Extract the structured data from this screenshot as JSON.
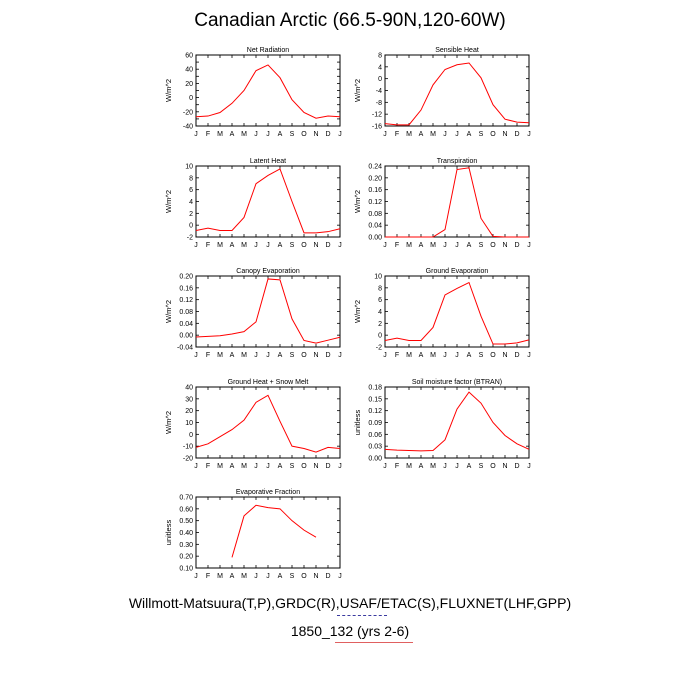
{
  "title": "Canadian Arctic (66.5-90N,120-60W)",
  "footer": {
    "sources": "Willmott-Matsuura(T,P),GRDC(R),USAF/ETAC(S),FLUXNET(LHF,GPP)",
    "case": "1850_132 (yrs 2-6)"
  },
  "colors": {
    "series": "#ff0000",
    "axis": "#000000"
  },
  "months": [
    "J",
    "F",
    "M",
    "A",
    "M",
    "J",
    "J",
    "A",
    "S",
    "O",
    "N",
    "D",
    "J"
  ],
  "chart_data": [
    {
      "type": "line",
      "title": "Net Radiation",
      "ylabel": "W/m^2",
      "ylim": [
        -40,
        60
      ],
      "yticks": [
        -40,
        -30,
        -20,
        -10,
        0,
        10,
        20,
        30,
        40,
        50,
        60
      ],
      "ytick_labels": [
        "-40",
        "-20",
        "0",
        "20",
        "40",
        "60"
      ],
      "x": [
        1,
        2,
        3,
        4,
        5,
        6,
        7,
        8,
        9,
        10,
        11,
        12,
        13
      ],
      "values": [
        -27,
        -26,
        -21,
        -8,
        10,
        38,
        46,
        28,
        -3,
        -21,
        -29,
        -26,
        -27
      ]
    },
    {
      "type": "line",
      "title": "Sensible Heat",
      "ylabel": "W/m^2",
      "ylim": [
        -16,
        8
      ],
      "yticks": [
        -16,
        -12,
        -8,
        -4,
        0,
        4,
        8
      ],
      "ytick_labels": [
        "-16",
        "-12",
        "-8",
        "-4",
        "0",
        "4",
        "8"
      ],
      "x": [
        1,
        2,
        3,
        4,
        5,
        6,
        7,
        8,
        9,
        10,
        11,
        12,
        13
      ],
      "values": [
        -15.2,
        -15.6,
        -15.6,
        -10.6,
        -2.1,
        3.1,
        4.7,
        5.3,
        0.3,
        -8.8,
        -13.7,
        -14.7,
        -14.9
      ]
    },
    {
      "type": "line",
      "title": "Latent Heat",
      "ylabel": "W/m^2",
      "ylim": [
        -2,
        10
      ],
      "yticks": [
        -2,
        0,
        2,
        4,
        6,
        8,
        10
      ],
      "ytick_labels": [
        "-2",
        "0",
        "2",
        "4",
        "6",
        "8",
        "10"
      ],
      "x": [
        1,
        2,
        3,
        4,
        5,
        6,
        7,
        8,
        9,
        10,
        11,
        12,
        13
      ],
      "values": [
        -0.9,
        -0.5,
        -0.9,
        -0.9,
        1.3,
        7.0,
        8.4,
        9.5,
        4.0,
        -1.3,
        -1.3,
        -1.1,
        -0.6
      ]
    },
    {
      "type": "line",
      "title": "Transpiration",
      "ylabel": "W/m^2",
      "ylim": [
        0,
        0.24
      ],
      "yticks": [
        0,
        0.04,
        0.08,
        0.12,
        0.16,
        0.2,
        0.24
      ],
      "ytick_labels": [
        "0.00",
        "0.04",
        "0.08",
        "0.12",
        "0.16",
        "0.20",
        "0.24"
      ],
      "x": [
        1,
        2,
        3,
        4,
        5,
        6,
        7,
        8,
        9,
        10,
        11,
        12,
        13
      ],
      "values": [
        0,
        0,
        0,
        0,
        0,
        0.025,
        0.228,
        0.234,
        0.063,
        0.002,
        0,
        0,
        0
      ]
    },
    {
      "type": "line",
      "title": "Canopy Evaporation",
      "ylabel": "W/m^2",
      "ylim": [
        -0.04,
        0.2
      ],
      "yticks": [
        -0.04,
        0,
        0.04,
        0.08,
        0.12,
        0.16,
        0.2
      ],
      "ytick_labels": [
        "-0.04",
        "0.00",
        "0.04",
        "0.08",
        "0.12",
        "0.16",
        "0.20"
      ],
      "x": [
        1,
        2,
        3,
        4,
        5,
        6,
        7,
        8,
        9,
        10,
        11,
        12,
        13
      ],
      "values": [
        -0.006,
        -0.004,
        -0.002,
        0.004,
        0.012,
        0.045,
        0.19,
        0.187,
        0.055,
        -0.018,
        -0.027,
        -0.017,
        -0.007
      ]
    },
    {
      "type": "line",
      "title": "Ground Evaporation",
      "ylabel": "W/m^2",
      "ylim": [
        -2,
        10
      ],
      "yticks": [
        -2,
        0,
        2,
        4,
        6,
        8,
        10
      ],
      "ytick_labels": [
        "-2",
        "0",
        "2",
        "4",
        "6",
        "8",
        "10"
      ],
      "x": [
        1,
        2,
        3,
        4,
        5,
        6,
        7,
        8,
        9,
        10,
        11,
        12,
        13
      ],
      "values": [
        -0.9,
        -0.5,
        -0.9,
        -0.9,
        1.3,
        6.8,
        7.9,
        8.9,
        3.2,
        -1.5,
        -1.5,
        -1.3,
        -0.8
      ]
    },
    {
      "type": "line",
      "title": "Ground Heat + Snow Melt",
      "ylabel": "W/m^2",
      "ylim": [
        -20,
        40
      ],
      "yticks": [
        -20,
        -10,
        0,
        10,
        20,
        30,
        40
      ],
      "ytick_labels": [
        "-20",
        "-10",
        "0",
        "10",
        "20",
        "30",
        "40"
      ],
      "x": [
        1,
        2,
        3,
        4,
        5,
        6,
        7,
        8,
        9,
        10,
        11,
        12,
        13
      ],
      "values": [
        -11,
        -8,
        -2,
        4,
        12,
        27,
        33,
        11,
        -10,
        -12,
        -15,
        -11,
        -12
      ]
    },
    {
      "type": "line",
      "title": "Soil moisture factor (BTRAN)",
      "ylabel": "unitless",
      "ylim": [
        0,
        0.18
      ],
      "yticks": [
        0,
        0.03,
        0.06,
        0.09,
        0.12,
        0.15,
        0.18
      ],
      "ytick_labels": [
        "0.00",
        "0.03",
        "0.06",
        "0.09",
        "0.12",
        "0.15",
        "0.18"
      ],
      "x": [
        1,
        2,
        3,
        4,
        5,
        6,
        7,
        8,
        9,
        10,
        11,
        12,
        13
      ],
      "values": [
        0.022,
        0.02,
        0.019,
        0.018,
        0.019,
        0.046,
        0.124,
        0.167,
        0.139,
        0.09,
        0.057,
        0.036,
        0.022
      ]
    },
    {
      "type": "line",
      "title": "Evaporative Fraction",
      "ylabel": "unitless",
      "ylim": [
        0.1,
        0.7
      ],
      "yticks": [
        0.1,
        0.2,
        0.3,
        0.4,
        0.5,
        0.6,
        0.7
      ],
      "ytick_labels": [
        "0.10",
        "0.20",
        "0.30",
        "0.40",
        "0.50",
        "0.60",
        "0.70"
      ],
      "x": [
        4,
        5,
        6,
        7,
        8,
        9,
        10,
        11
      ],
      "values": [
        0.19,
        0.54,
        0.63,
        0.61,
        0.6,
        0.5,
        0.42,
        0.36
      ]
    }
  ]
}
